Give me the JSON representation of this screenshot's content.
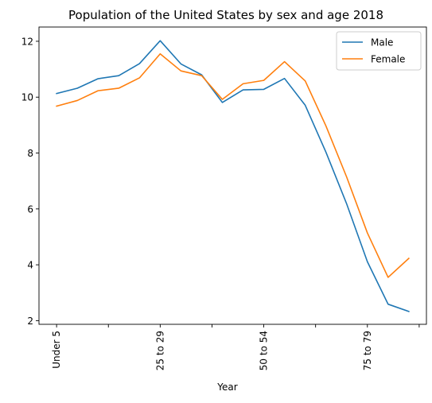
{
  "chart_data": {
    "type": "line",
    "title": "Population of the United States by sex and age 2018",
    "xlabel": "Year",
    "ylabel": "",
    "ylim": [
      1.87,
      12.51
    ],
    "grid": false,
    "legend_position": "top-right",
    "x_tick_labels": [
      "Under 5",
      "",
      "25 to 29",
      "",
      "50 to 54",
      "",
      "75 to 79",
      ""
    ],
    "x_tick_indices": [
      0,
      2.5,
      5,
      7.5,
      10,
      12.5,
      15,
      17.5
    ],
    "y_ticks": [
      2,
      4,
      6,
      8,
      10,
      12
    ],
    "series": [
      {
        "name": "Male",
        "color": "#1f77b4",
        "values": [
          10.13,
          10.32,
          10.66,
          10.77,
          11.2,
          12.02,
          11.19,
          10.8,
          9.81,
          10.26,
          10.28,
          10.67,
          9.71,
          8.03,
          6.18,
          4.11,
          2.59,
          2.33
        ]
      },
      {
        "name": "Female",
        "color": "#ff7f0e",
        "values": [
          9.68,
          9.88,
          10.23,
          10.32,
          10.69,
          11.55,
          10.94,
          10.77,
          9.92,
          10.48,
          10.6,
          11.27,
          10.58,
          8.97,
          7.14,
          5.14,
          3.55,
          4.23
        ]
      }
    ]
  }
}
